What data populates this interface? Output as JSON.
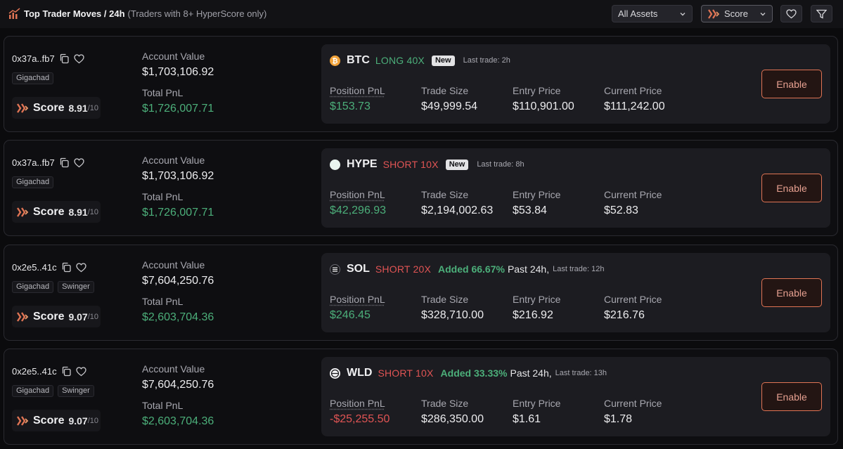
{
  "header": {
    "title": "Top Trader Moves / 24h",
    "subtitle": "(Traders with 8+ HyperScore only)",
    "asset_filter": "All Assets",
    "sort_select": "Score"
  },
  "colors": {
    "accent": "#e07454",
    "green": "#4caf7a",
    "red": "#e05454",
    "panel": "#1c1c21"
  },
  "labels": {
    "account_value": "Account Value",
    "total_pnl": "Total PnL",
    "score": "Score",
    "score_denominator": "/10",
    "position_pnl": "Position PnL",
    "trade_size": "Trade Size",
    "entry_price": "Entry Price",
    "current_price": "Current Price",
    "enable": "Enable",
    "new_badge": "New",
    "past_24h": "Past 24h,"
  },
  "traders": [
    {
      "address": "0x37a..fb7",
      "tags": [
        "Gigachad"
      ],
      "score": "8.91",
      "account_value": "$1,703,106.92",
      "total_pnl": "$1,726,007.71",
      "position": {
        "coin_icon": "btc-coin-icon",
        "coin_color": "#f2a33a",
        "symbol": "BTC",
        "side": "LONG 40X",
        "side_type": "long",
        "badge": "New",
        "added": "",
        "past": "",
        "last_trade": "Last trade: 2h",
        "pnl": "$153.73",
        "pnl_type": "green",
        "trade_size": "$49,999.54",
        "entry_price": "$110,901.00",
        "current_price": "$111,242.00"
      }
    },
    {
      "address": "0x37a..fb7",
      "tags": [
        "Gigachad"
      ],
      "score": "8.91",
      "account_value": "$1,703,106.92",
      "total_pnl": "$1,726,007.71",
      "position": {
        "coin_icon": "hype-coin-icon",
        "coin_color": "#e8f5ef",
        "symbol": "HYPE",
        "side": "SHORT 10X",
        "side_type": "short",
        "badge": "New",
        "added": "",
        "past": "",
        "last_trade": "Last trade: 8h",
        "pnl": "$42,296.93",
        "pnl_type": "green",
        "trade_size": "$2,194,002.63",
        "entry_price": "$53.84",
        "current_price": "$52.83"
      }
    },
    {
      "address": "0x2e5..41c",
      "tags": [
        "Gigachad",
        "Swinger"
      ],
      "score": "9.07",
      "account_value": "$7,604,250.76",
      "total_pnl": "$2,603,704.36",
      "position": {
        "coin_icon": "sol-coin-icon",
        "coin_color": "#1a1a1e",
        "symbol": "SOL",
        "side": "SHORT 20X",
        "side_type": "short",
        "badge": "",
        "added": "Added 66.67%",
        "past": "Past 24h,",
        "last_trade": "Last trade: 12h",
        "pnl": "$246.45",
        "pnl_type": "green",
        "trade_size": "$328,710.00",
        "entry_price": "$216.92",
        "current_price": "$216.76"
      }
    },
    {
      "address": "0x2e5..41c",
      "tags": [
        "Gigachad",
        "Swinger"
      ],
      "score": "9.07",
      "account_value": "$7,604,250.76",
      "total_pnl": "$2,603,704.36",
      "position": {
        "coin_icon": "wld-coin-icon",
        "coin_color": "#f4f4f6",
        "symbol": "WLD",
        "side": "SHORT 10X",
        "side_type": "short",
        "badge": "",
        "added": "Added 33.33%",
        "past": "Past 24h,",
        "last_trade": "Last trade: 13h",
        "pnl": "-$25,255.50",
        "pnl_type": "red",
        "trade_size": "$286,350.00",
        "entry_price": "$1.61",
        "current_price": "$1.78"
      }
    }
  ]
}
